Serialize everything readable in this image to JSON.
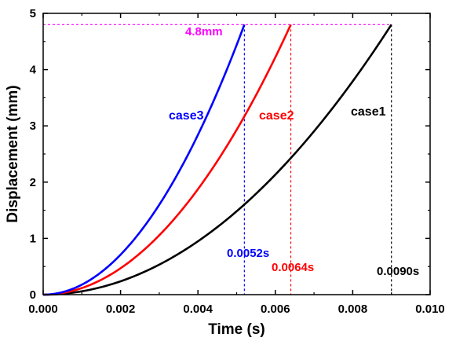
{
  "chart_data": {
    "type": "line",
    "xlabel": "Time (s)",
    "ylabel": "Displacement (mm)",
    "xlim": [
      0,
      0.01
    ],
    "ylim": [
      0,
      5
    ],
    "x_ticks": [
      "0.000",
      "0.002",
      "0.004",
      "0.006",
      "0.008",
      "0.010"
    ],
    "x_tick_values": [
      0,
      0.002,
      0.004,
      0.006,
      0.008,
      0.01
    ],
    "y_ticks": [
      "0",
      "1",
      "2",
      "3",
      "4",
      "5"
    ],
    "y_tick_values": [
      0,
      1,
      2,
      3,
      4,
      5
    ],
    "grid": false,
    "series": [
      {
        "name": "case1",
        "color": "#000000",
        "points": [
          [
            0,
            0
          ],
          [
            0.001,
            0.06
          ],
          [
            0.002,
            0.24
          ],
          [
            0.003,
            0.53
          ],
          [
            0.004,
            0.95
          ],
          [
            0.005,
            1.48
          ],
          [
            0.006,
            2.13
          ],
          [
            0.007,
            2.9
          ],
          [
            0.008,
            3.79
          ],
          [
            0.009,
            4.8
          ]
        ]
      },
      {
        "name": "case2",
        "color": "#ff0000",
        "points": [
          [
            0,
            0
          ],
          [
            0.001,
            0.12
          ],
          [
            0.002,
            0.47
          ],
          [
            0.003,
            1.05
          ],
          [
            0.004,
            1.88
          ],
          [
            0.005,
            2.93
          ],
          [
            0.006,
            4.22
          ],
          [
            0.0064,
            4.8
          ]
        ]
      },
      {
        "name": "case3",
        "color": "#0000ff",
        "points": [
          [
            0,
            0
          ],
          [
            0.001,
            0.18
          ],
          [
            0.002,
            0.71
          ],
          [
            0.003,
            1.6
          ],
          [
            0.004,
            2.84
          ],
          [
            0.005,
            4.44
          ],
          [
            0.0052,
            4.8
          ]
        ]
      }
    ],
    "annotations": {
      "threshold": {
        "label": "4.8mm",
        "value": 4.8,
        "color": "#ff00ff"
      },
      "end_markers": [
        {
          "label": "0.0052s",
          "x": 0.0052,
          "color": "#0000ff"
        },
        {
          "label": "0.0064s",
          "x": 0.0064,
          "color": "#ff0000"
        },
        {
          "label": "0.0090s",
          "x": 0.009,
          "color": "#000000"
        }
      ]
    }
  }
}
